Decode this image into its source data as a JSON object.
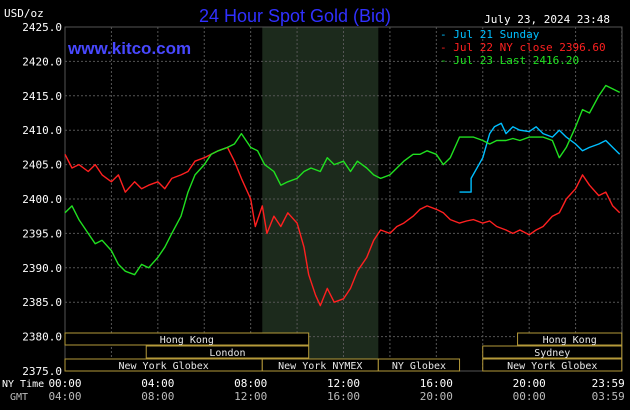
{
  "header": {
    "unit": "USD/oz",
    "title": "24 Hour Spot Gold (Bid)",
    "timestamp": "July 23, 2024 23:48",
    "website": "www.kitco.com"
  },
  "legend": [
    {
      "label": "Jul 21 Sunday",
      "color": "#00bfff"
    },
    {
      "label": "Jul 22 NY close 2396.60",
      "color": "#ff2020"
    },
    {
      "label": "Jul 23 Last 2416.20",
      "color": "#20e020"
    }
  ],
  "time_axis": {
    "row1_label": "NY Time",
    "row2_label": "GMT",
    "ny_ticks": [
      "00:00",
      "04:00",
      "08:00",
      "12:00",
      "16:00",
      "20:00",
      "23:59"
    ],
    "gmt_ticks": [
      "04:00",
      "08:00",
      "12:00",
      "16:00",
      "20:00",
      "00:00",
      "03:59"
    ]
  },
  "sessions": [
    {
      "label": "Hong Kong",
      "row": 0,
      "start": 0.0,
      "end": 10.5
    },
    {
      "label": "London",
      "row": 1,
      "start": 3.5,
      "end": 10.5
    },
    {
      "label": "New York Globex",
      "row": 2,
      "start": 0.0,
      "end": 8.5
    },
    {
      "label": "New York NYMEX",
      "row": 2,
      "start": 8.5,
      "end": 13.5
    },
    {
      "label": "NY Globex",
      "row": 2,
      "start": 13.5,
      "end": 17.0
    },
    {
      "label": "Hong Kong",
      "row": 0,
      "start": 19.5,
      "end": 23.99
    },
    {
      "label": "Sydney",
      "row": 1,
      "start": 18.0,
      "end": 23.99
    },
    {
      "label": "New York Globex",
      "row": 2,
      "start": 18.0,
      "end": 23.99
    }
  ],
  "colors": {
    "background": "#000000",
    "grid": "#555555",
    "title": "#3030ff",
    "website": "#4848ff",
    "axis_text": "#ffffff",
    "gmt_text": "#bbbbbb",
    "nymex_shade": "#1c2a1c",
    "session_border": "#b59a3a",
    "session_text": "#e8e8e8"
  },
  "chart_data": {
    "type": "line",
    "title": "24 Hour Spot Gold (Bid)",
    "ylabel": "USD/oz",
    "xlabel": "NY Time",
    "ylim": [
      2375,
      2425
    ],
    "xlim": [
      0,
      24
    ],
    "y_ticks": [
      "2425.0",
      "2420.0",
      "2415.0",
      "2410.0",
      "2405.0",
      "2400.0",
      "2395.0",
      "2390.0",
      "2385.0",
      "2380.0",
      "2375.0"
    ],
    "shaded_range": [
      8.5,
      13.5
    ],
    "grid": true,
    "legend_position": "top-right",
    "series": [
      {
        "name": "Jul 21 Sunday",
        "color": "#00bfff",
        "x": [
          17.0,
          17.5,
          17.5,
          18.0,
          18.3,
          18.5,
          18.8,
          19.0,
          19.3,
          19.6,
          20.0,
          20.3,
          20.6,
          21.0,
          21.3,
          21.6,
          22.0,
          22.3,
          22.6,
          23.0,
          23.3,
          23.6,
          23.9
        ],
        "y": [
          2401.0,
          2401.0,
          2403.0,
          2406.0,
          2409.5,
          2410.5,
          2411.0,
          2409.5,
          2410.5,
          2410.0,
          2409.8,
          2410.5,
          2409.5,
          2409.0,
          2410.0,
          2409.0,
          2408.0,
          2407.0,
          2407.5,
          2408.0,
          2408.5,
          2407.5,
          2406.5
        ]
      },
      {
        "name": "Jul 22 NY close 2396.60",
        "color": "#ff2020",
        "x": [
          0.0,
          0.3,
          0.6,
          1.0,
          1.3,
          1.6,
          2.0,
          2.3,
          2.6,
          3.0,
          3.3,
          3.6,
          4.0,
          4.3,
          4.6,
          5.0,
          5.3,
          5.6,
          6.0,
          6.3,
          6.6,
          7.0,
          7.3,
          7.6,
          8.0,
          8.2,
          8.5,
          8.7,
          9.0,
          9.3,
          9.6,
          10.0,
          10.3,
          10.5,
          10.8,
          11.0,
          11.3,
          11.6,
          12.0,
          12.3,
          12.6,
          13.0,
          13.3,
          13.6,
          14.0,
          14.3,
          14.6,
          15.0,
          15.3,
          15.6,
          16.0,
          16.3,
          16.6,
          17.0,
          17.3,
          17.6,
          18.0,
          18.3,
          18.6,
          19.0,
          19.3,
          19.6,
          20.0,
          20.3,
          20.6,
          21.0,
          21.3,
          21.6,
          22.0,
          22.3,
          22.6,
          23.0,
          23.3,
          23.6,
          23.9
        ],
        "y": [
          2406.5,
          2404.5,
          2405.0,
          2404.0,
          2405.0,
          2403.5,
          2402.5,
          2403.5,
          2401.0,
          2402.5,
          2401.5,
          2402.0,
          2402.5,
          2401.5,
          2403.0,
          2403.5,
          2404.0,
          2405.5,
          2406.0,
          2406.5,
          2407.0,
          2407.5,
          2405.5,
          2403.0,
          2400.0,
          2396.0,
          2399.0,
          2395.0,
          2397.5,
          2396.0,
          2398.0,
          2396.5,
          2393.0,
          2389.0,
          2386.0,
          2384.5,
          2387.0,
          2385.0,
          2385.5,
          2387.0,
          2389.5,
          2391.5,
          2394.0,
          2395.5,
          2395.0,
          2396.0,
          2396.5,
          2397.5,
          2398.5,
          2399.0,
          2398.5,
          2398.0,
          2397.0,
          2396.5,
          2396.8,
          2397.0,
          2396.5,
          2396.8,
          2396.0,
          2395.5,
          2395.0,
          2395.5,
          2394.8,
          2395.5,
          2396.0,
          2397.5,
          2398.0,
          2400.0,
          2401.5,
          2403.5,
          2402.0,
          2400.5,
          2401.0,
          2399.0,
          2398.0
        ]
      },
      {
        "name": "Jul 23 Last 2416.20",
        "color": "#20e020",
        "x": [
          0.0,
          0.3,
          0.6,
          1.0,
          1.3,
          1.6,
          2.0,
          2.3,
          2.6,
          3.0,
          3.3,
          3.6,
          4.0,
          4.3,
          4.6,
          5.0,
          5.3,
          5.6,
          6.0,
          6.3,
          6.6,
          7.0,
          7.3,
          7.6,
          8.0,
          8.3,
          8.6,
          9.0,
          9.3,
          9.6,
          10.0,
          10.3,
          10.6,
          11.0,
          11.3,
          11.6,
          12.0,
          12.3,
          12.6,
          13.0,
          13.3,
          13.6,
          14.0,
          14.3,
          14.6,
          15.0,
          15.3,
          15.6,
          16.0,
          16.3,
          16.6,
          17.0,
          17.3,
          17.6,
          18.0,
          18.3,
          18.6,
          19.0,
          19.3,
          19.6,
          20.0,
          20.3,
          20.6,
          21.0,
          21.3,
          21.6,
          22.0,
          22.3,
          22.6,
          23.0,
          23.3,
          23.6,
          23.9
        ],
        "y": [
          2398.0,
          2399.0,
          2397.0,
          2395.0,
          2393.5,
          2394.0,
          2392.5,
          2390.5,
          2389.5,
          2389.0,
          2390.5,
          2390.0,
          2391.5,
          2393.0,
          2395.0,
          2397.5,
          2401.0,
          2403.5,
          2405.0,
          2406.5,
          2407.0,
          2407.5,
          2408.0,
          2409.5,
          2407.5,
          2407.0,
          2405.0,
          2404.0,
          2402.0,
          2402.5,
          2403.0,
          2404.0,
          2404.5,
          2404.0,
          2406.0,
          2405.0,
          2405.5,
          2404.0,
          2405.5,
          2404.5,
          2403.5,
          2403.0,
          2403.5,
          2404.5,
          2405.5,
          2406.5,
          2406.5,
          2407.0,
          2406.5,
          2405.0,
          2406.0,
          2409.0,
          2409.0,
          2409.0,
          2408.5,
          2408.0,
          2408.5,
          2408.5,
          2408.8,
          2408.5,
          2409.0,
          2409.0,
          2409.0,
          2408.5,
          2406.0,
          2407.5,
          2410.5,
          2413.0,
          2412.5,
          2415.0,
          2416.5,
          2416.0,
          2415.5
        ]
      }
    ]
  }
}
